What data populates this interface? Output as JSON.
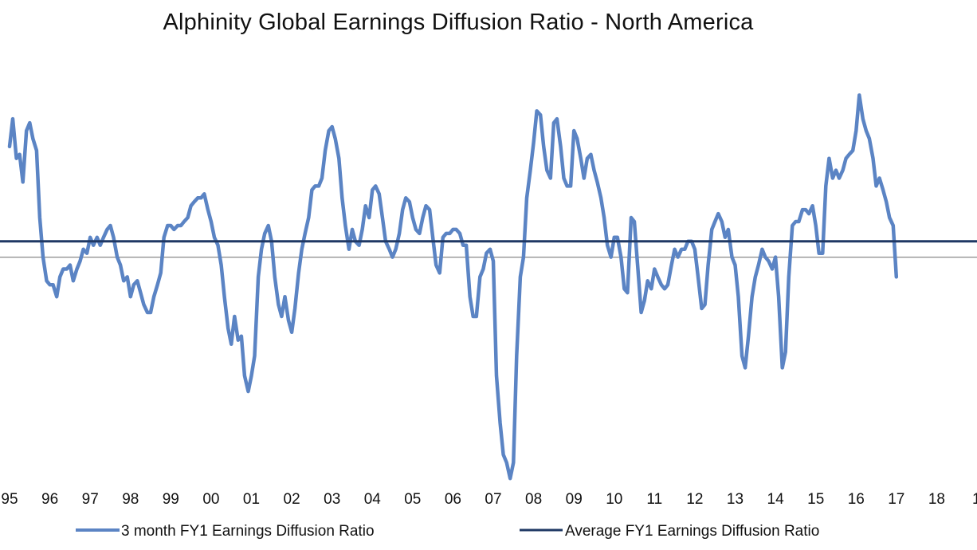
{
  "chart_data": {
    "type": "line",
    "title": "Alphinity Global Earnings Diffusion Ratio - North America",
    "xlabel": "",
    "ylabel": "",
    "x_tick_labels": [
      "95",
      "96",
      "97",
      "98",
      "99",
      "00",
      "01",
      "02",
      "03",
      "04",
      "05",
      "06",
      "07",
      "08",
      "09",
      "10",
      "11",
      "12",
      "13",
      "14",
      "15",
      "16",
      "17",
      "18",
      "1"
    ],
    "ylim": [
      -0.6,
      0.55
    ],
    "grid": false,
    "legend_placement": "bottom",
    "baseline": 0,
    "series": [
      {
        "name": "3 month FY1 Earnings Diffusion Ratio",
        "color": "#5B84C4",
        "points": [
          [
            1995.0,
            0.28
          ],
          [
            1995.08,
            0.35
          ],
          [
            1995.17,
            0.25
          ],
          [
            1995.25,
            0.26
          ],
          [
            1995.33,
            0.19
          ],
          [
            1995.42,
            0.32
          ],
          [
            1995.5,
            0.34
          ],
          [
            1995.58,
            0.3
          ],
          [
            1995.67,
            0.27
          ],
          [
            1995.75,
            0.1
          ],
          [
            1995.83,
            0.0
          ],
          [
            1995.92,
            -0.06
          ],
          [
            1996.0,
            -0.07
          ],
          [
            1996.08,
            -0.07
          ],
          [
            1996.17,
            -0.1
          ],
          [
            1996.25,
            -0.05
          ],
          [
            1996.33,
            -0.03
          ],
          [
            1996.42,
            -0.03
          ],
          [
            1996.5,
            -0.02
          ],
          [
            1996.58,
            -0.06
          ],
          [
            1996.67,
            -0.03
          ],
          [
            1996.75,
            -0.01
          ],
          [
            1996.83,
            0.02
          ],
          [
            1996.92,
            0.01
          ],
          [
            1997.0,
            0.05
          ],
          [
            1997.08,
            0.03
          ],
          [
            1997.17,
            0.05
          ],
          [
            1997.25,
            0.03
          ],
          [
            1997.33,
            0.05
          ],
          [
            1997.42,
            0.07
          ],
          [
            1997.5,
            0.08
          ],
          [
            1997.58,
            0.05
          ],
          [
            1997.67,
            0.0
          ],
          [
            1997.75,
            -0.02
          ],
          [
            1997.83,
            -0.06
          ],
          [
            1997.92,
            -0.05
          ],
          [
            1998.0,
            -0.1
          ],
          [
            1998.08,
            -0.07
          ],
          [
            1998.17,
            -0.06
          ],
          [
            1998.25,
            -0.09
          ],
          [
            1998.33,
            -0.12
          ],
          [
            1998.42,
            -0.14
          ],
          [
            1998.5,
            -0.14
          ],
          [
            1998.58,
            -0.1
          ],
          [
            1998.67,
            -0.07
          ],
          [
            1998.75,
            -0.04
          ],
          [
            1998.83,
            0.05
          ],
          [
            1998.92,
            0.08
          ],
          [
            1999.0,
            0.08
          ],
          [
            1999.08,
            0.07
          ],
          [
            1999.17,
            0.08
          ],
          [
            1999.25,
            0.08
          ],
          [
            1999.33,
            0.09
          ],
          [
            1999.42,
            0.1
          ],
          [
            1999.5,
            0.13
          ],
          [
            1999.58,
            0.14
          ],
          [
            1999.67,
            0.15
          ],
          [
            1999.75,
            0.15
          ],
          [
            1999.83,
            0.16
          ],
          [
            1999.92,
            0.12
          ],
          [
            2000.0,
            0.09
          ],
          [
            2000.08,
            0.05
          ],
          [
            2000.17,
            0.03
          ],
          [
            2000.25,
            -0.02
          ],
          [
            2000.33,
            -0.1
          ],
          [
            2000.42,
            -0.18
          ],
          [
            2000.5,
            -0.22
          ],
          [
            2000.58,
            -0.15
          ],
          [
            2000.67,
            -0.21
          ],
          [
            2000.75,
            -0.2
          ],
          [
            2000.83,
            -0.3
          ],
          [
            2000.92,
            -0.34
          ],
          [
            2001.0,
            -0.3
          ],
          [
            2001.08,
            -0.25
          ],
          [
            2001.17,
            -0.05
          ],
          [
            2001.25,
            0.02
          ],
          [
            2001.33,
            0.06
          ],
          [
            2001.42,
            0.08
          ],
          [
            2001.5,
            0.04
          ],
          [
            2001.58,
            -0.05
          ],
          [
            2001.67,
            -0.12
          ],
          [
            2001.75,
            -0.15
          ],
          [
            2001.83,
            -0.1
          ],
          [
            2001.92,
            -0.16
          ],
          [
            2002.0,
            -0.19
          ],
          [
            2002.08,
            -0.13
          ],
          [
            2002.17,
            -0.04
          ],
          [
            2002.25,
            0.02
          ],
          [
            2002.33,
            0.06
          ],
          [
            2002.42,
            0.1
          ],
          [
            2002.5,
            0.17
          ],
          [
            2002.58,
            0.18
          ],
          [
            2002.67,
            0.18
          ],
          [
            2002.75,
            0.2
          ],
          [
            2002.83,
            0.27
          ],
          [
            2002.92,
            0.32
          ],
          [
            2003.0,
            0.33
          ],
          [
            2003.08,
            0.3
          ],
          [
            2003.17,
            0.25
          ],
          [
            2003.25,
            0.15
          ],
          [
            2003.33,
            0.08
          ],
          [
            2003.42,
            0.02
          ],
          [
            2003.5,
            0.07
          ],
          [
            2003.58,
            0.04
          ],
          [
            2003.67,
            0.03
          ],
          [
            2003.75,
            0.07
          ],
          [
            2003.83,
            0.13
          ],
          [
            2003.92,
            0.1
          ],
          [
            2004.0,
            0.17
          ],
          [
            2004.08,
            0.18
          ],
          [
            2004.17,
            0.16
          ],
          [
            2004.25,
            0.1
          ],
          [
            2004.33,
            0.04
          ],
          [
            2004.42,
            0.02
          ],
          [
            2004.5,
            0.0
          ],
          [
            2004.58,
            0.02
          ],
          [
            2004.67,
            0.06
          ],
          [
            2004.75,
            0.12
          ],
          [
            2004.83,
            0.15
          ],
          [
            2004.92,
            0.14
          ],
          [
            2005.0,
            0.1
          ],
          [
            2005.08,
            0.07
          ],
          [
            2005.17,
            0.06
          ],
          [
            2005.25,
            0.1
          ],
          [
            2005.33,
            0.13
          ],
          [
            2005.42,
            0.12
          ],
          [
            2005.5,
            0.05
          ],
          [
            2005.58,
            -0.02
          ],
          [
            2005.67,
            -0.04
          ],
          [
            2005.75,
            0.05
          ],
          [
            2005.83,
            0.06
          ],
          [
            2005.92,
            0.06
          ],
          [
            2006.0,
            0.07
          ],
          [
            2006.08,
            0.07
          ],
          [
            2006.17,
            0.06
          ],
          [
            2006.25,
            0.03
          ],
          [
            2006.33,
            0.03
          ],
          [
            2006.42,
            -0.1
          ],
          [
            2006.5,
            -0.15
          ],
          [
            2006.58,
            -0.15
          ],
          [
            2006.67,
            -0.05
          ],
          [
            2006.75,
            -0.03
          ],
          [
            2006.83,
            0.01
          ],
          [
            2006.92,
            0.02
          ],
          [
            2007.0,
            -0.01
          ],
          [
            2007.08,
            -0.3
          ],
          [
            2007.17,
            -0.42
          ],
          [
            2007.25,
            -0.5
          ],
          [
            2007.33,
            -0.52
          ],
          [
            2007.42,
            -0.56
          ],
          [
            2007.5,
            -0.52
          ],
          [
            2007.58,
            -0.25
          ],
          [
            2007.67,
            -0.05
          ],
          [
            2007.75,
            0.0
          ],
          [
            2007.83,
            0.15
          ],
          [
            2007.92,
            0.22
          ],
          [
            2008.0,
            0.29
          ],
          [
            2008.08,
            0.37
          ],
          [
            2008.17,
            0.36
          ],
          [
            2008.25,
            0.28
          ],
          [
            2008.33,
            0.22
          ],
          [
            2008.42,
            0.2
          ],
          [
            2008.5,
            0.34
          ],
          [
            2008.58,
            0.35
          ],
          [
            2008.67,
            0.28
          ],
          [
            2008.75,
            0.2
          ],
          [
            2008.83,
            0.18
          ],
          [
            2008.92,
            0.18
          ],
          [
            2009.0,
            0.32
          ],
          [
            2009.08,
            0.3
          ],
          [
            2009.17,
            0.25
          ],
          [
            2009.25,
            0.2
          ],
          [
            2009.33,
            0.25
          ],
          [
            2009.42,
            0.26
          ],
          [
            2009.5,
            0.22
          ],
          [
            2009.58,
            0.19
          ],
          [
            2009.67,
            0.15
          ],
          [
            2009.75,
            0.1
          ],
          [
            2009.83,
            0.03
          ],
          [
            2009.92,
            0.0
          ],
          [
            2010.0,
            0.05
          ],
          [
            2010.08,
            0.05
          ],
          [
            2010.17,
            0.0
          ],
          [
            2010.25,
            -0.08
          ],
          [
            2010.33,
            -0.09
          ],
          [
            2010.42,
            0.1
          ],
          [
            2010.5,
            0.09
          ],
          [
            2010.58,
            -0.02
          ],
          [
            2010.67,
            -0.14
          ],
          [
            2010.75,
            -0.11
          ],
          [
            2010.83,
            -0.06
          ],
          [
            2010.92,
            -0.08
          ],
          [
            2011.0,
            -0.03
          ],
          [
            2011.08,
            -0.05
          ],
          [
            2011.17,
            -0.07
          ],
          [
            2011.25,
            -0.08
          ],
          [
            2011.33,
            -0.07
          ],
          [
            2011.42,
            -0.02
          ],
          [
            2011.5,
            0.02
          ],
          [
            2011.58,
            0.0
          ],
          [
            2011.67,
            0.02
          ],
          [
            2011.75,
            0.02
          ],
          [
            2011.83,
            0.04
          ],
          [
            2011.92,
            0.04
          ],
          [
            2012.0,
            0.02
          ],
          [
            2012.08,
            -0.05
          ],
          [
            2012.17,
            -0.13
          ],
          [
            2012.25,
            -0.12
          ],
          [
            2012.33,
            -0.02
          ],
          [
            2012.42,
            0.07
          ],
          [
            2012.5,
            0.09
          ],
          [
            2012.58,
            0.11
          ],
          [
            2012.67,
            0.09
          ],
          [
            2012.75,
            0.05
          ],
          [
            2012.83,
            0.07
          ],
          [
            2012.92,
            0.0
          ],
          [
            2013.0,
            -0.02
          ],
          [
            2013.08,
            -0.1
          ],
          [
            2013.17,
            -0.25
          ],
          [
            2013.25,
            -0.28
          ],
          [
            2013.33,
            -0.2
          ],
          [
            2013.42,
            -0.1
          ],
          [
            2013.5,
            -0.05
          ],
          [
            2013.58,
            -0.02
          ],
          [
            2013.67,
            0.02
          ],
          [
            2013.75,
            0.0
          ],
          [
            2013.83,
            -0.01
          ],
          [
            2013.92,
            -0.03
          ],
          [
            2014.0,
            0.0
          ],
          [
            2014.08,
            -0.1
          ],
          [
            2014.17,
            -0.28
          ],
          [
            2014.25,
            -0.24
          ],
          [
            2014.33,
            -0.05
          ],
          [
            2014.42,
            0.08
          ],
          [
            2014.5,
            0.09
          ],
          [
            2014.58,
            0.09
          ],
          [
            2014.67,
            0.12
          ],
          [
            2014.75,
            0.12
          ],
          [
            2014.83,
            0.11
          ],
          [
            2014.92,
            0.13
          ],
          [
            2015.0,
            0.08
          ],
          [
            2015.08,
            0.01
          ],
          [
            2015.17,
            0.01
          ],
          [
            2015.25,
            0.18
          ],
          [
            2015.33,
            0.25
          ],
          [
            2015.42,
            0.2
          ],
          [
            2015.5,
            0.22
          ],
          [
            2015.58,
            0.2
          ],
          [
            2015.67,
            0.22
          ],
          [
            2015.75,
            0.25
          ],
          [
            2015.83,
            0.26
          ],
          [
            2015.92,
            0.27
          ],
          [
            2016.0,
            0.32
          ],
          [
            2016.08,
            0.41
          ],
          [
            2016.17,
            0.35
          ],
          [
            2016.25,
            0.32
          ],
          [
            2016.33,
            0.3
          ],
          [
            2016.42,
            0.25
          ],
          [
            2016.5,
            0.18
          ],
          [
            2016.58,
            0.2
          ],
          [
            2016.67,
            0.17
          ],
          [
            2016.75,
            0.14
          ],
          [
            2016.83,
            0.1
          ],
          [
            2016.92,
            0.08
          ],
          [
            2017.0,
            -0.05
          ]
        ]
      },
      {
        "name": "Average FY1 Earnings Diffusion Ratio",
        "color": "#1F3864",
        "value": 0.04
      }
    ]
  },
  "colors": {
    "series_line": "#5B84C4",
    "average_line": "#1F3864",
    "baseline": "#888888"
  }
}
